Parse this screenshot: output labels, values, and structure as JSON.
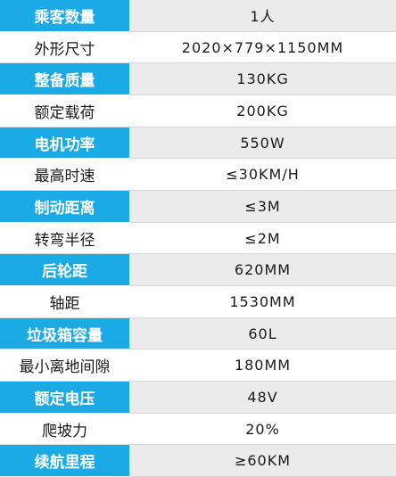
{
  "theme": {
    "accent": "#1aaae6",
    "row_alt": "#ebebeb",
    "row_plain": "#ffffff",
    "text": "#1a1a1a"
  },
  "specs": [
    {
      "label": "乘客数量",
      "value": "1人",
      "highlight": true
    },
    {
      "label": "外形尺寸",
      "value": "2020×779×1150MM",
      "highlight": false
    },
    {
      "label": "整备质量",
      "value": "130KG",
      "highlight": true
    },
    {
      "label": "额定载荷",
      "value": "200KG",
      "highlight": false
    },
    {
      "label": "电机功率",
      "value": "550W",
      "highlight": true
    },
    {
      "label": "最高时速",
      "value": "≤30KM/H",
      "highlight": false
    },
    {
      "label": "制动距离",
      "value": "≤3M",
      "highlight": true
    },
    {
      "label": "转弯半径",
      "value": "≤2M",
      "highlight": false
    },
    {
      "label": "后轮距",
      "value": "620MM",
      "highlight": true
    },
    {
      "label": "轴距",
      "value": "1530MM",
      "highlight": false
    },
    {
      "label": "垃圾箱容量",
      "value": "60L",
      "highlight": true
    },
    {
      "label": "最小离地间隙",
      "value": "180MM",
      "highlight": false
    },
    {
      "label": "额定电压",
      "value": "48V",
      "highlight": true
    },
    {
      "label": "爬坡力",
      "value": "20%",
      "highlight": false
    },
    {
      "label": "续航里程",
      "value": "≥60KM",
      "highlight": true
    }
  ]
}
